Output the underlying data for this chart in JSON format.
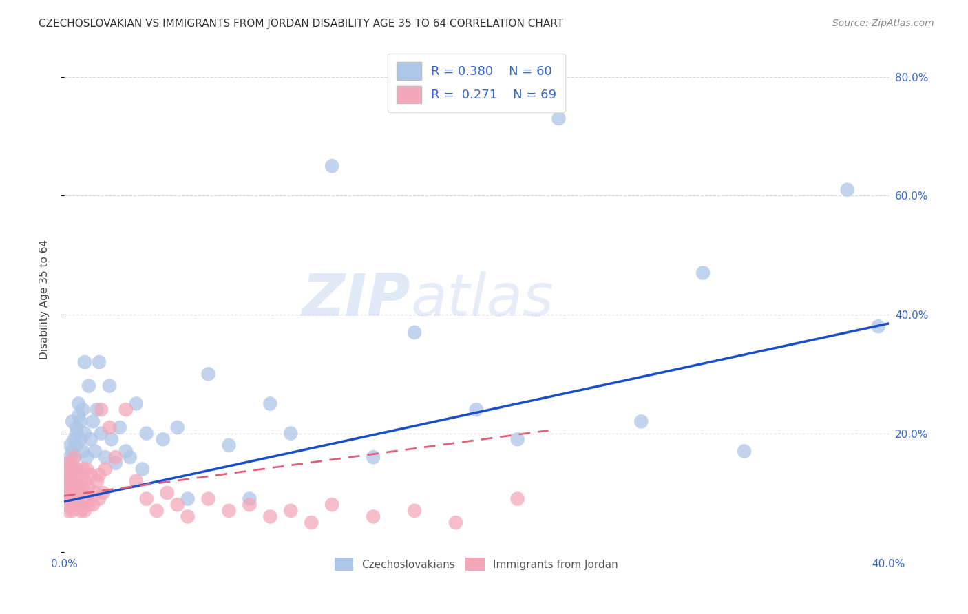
{
  "title": "CZECHOSLOVAKIAN VS IMMIGRANTS FROM JORDAN DISABILITY AGE 35 TO 64 CORRELATION CHART",
  "source": "Source: ZipAtlas.com",
  "ylabel": "Disability Age 35 to 64",
  "xlim": [
    0.0,
    0.4
  ],
  "ylim": [
    0.0,
    0.85
  ],
  "xticks": [
    0.0,
    0.1,
    0.2,
    0.3,
    0.4
  ],
  "xtick_labels": [
    "0.0%",
    "",
    "",
    "",
    "40.0%"
  ],
  "yticks": [
    0.0,
    0.2,
    0.4,
    0.6,
    0.8
  ],
  "ytick_labels_right": [
    "",
    "20.0%",
    "40.0%",
    "60.0%",
    "80.0%"
  ],
  "blue_R": 0.38,
  "blue_N": 60,
  "pink_R": 0.271,
  "pink_N": 69,
  "blue_color": "#aec6e8",
  "blue_line_color": "#1a4fcc",
  "pink_color": "#f4a7b9",
  "pink_line_color": "#e0607a",
  "watermark": "ZIPatlas",
  "blue_line_x": [
    0.0,
    0.4
  ],
  "blue_line_y": [
    0.085,
    0.385
  ],
  "pink_line_x": [
    0.0,
    0.235
  ],
  "pink_line_y": [
    0.095,
    0.205
  ],
  "blue_scatter_x": [
    0.001,
    0.001,
    0.002,
    0.002,
    0.003,
    0.003,
    0.003,
    0.004,
    0.004,
    0.004,
    0.005,
    0.005,
    0.006,
    0.006,
    0.006,
    0.007,
    0.007,
    0.008,
    0.008,
    0.009,
    0.009,
    0.01,
    0.01,
    0.011,
    0.012,
    0.013,
    0.014,
    0.015,
    0.016,
    0.017,
    0.018,
    0.02,
    0.022,
    0.023,
    0.025,
    0.027,
    0.03,
    0.032,
    0.035,
    0.038,
    0.04,
    0.048,
    0.055,
    0.06,
    0.07,
    0.08,
    0.09,
    0.1,
    0.11,
    0.13,
    0.15,
    0.17,
    0.2,
    0.22,
    0.24,
    0.28,
    0.31,
    0.33,
    0.38,
    0.395
  ],
  "blue_scatter_y": [
    0.12,
    0.14,
    0.1,
    0.15,
    0.18,
    0.13,
    0.16,
    0.14,
    0.17,
    0.22,
    0.19,
    0.16,
    0.2,
    0.18,
    0.21,
    0.25,
    0.23,
    0.19,
    0.22,
    0.17,
    0.24,
    0.32,
    0.2,
    0.16,
    0.28,
    0.19,
    0.22,
    0.17,
    0.24,
    0.32,
    0.2,
    0.16,
    0.28,
    0.19,
    0.15,
    0.21,
    0.17,
    0.16,
    0.25,
    0.14,
    0.2,
    0.19,
    0.21,
    0.09,
    0.3,
    0.18,
    0.09,
    0.25,
    0.2,
    0.65,
    0.16,
    0.37,
    0.24,
    0.19,
    0.73,
    0.22,
    0.47,
    0.17,
    0.61,
    0.38
  ],
  "pink_scatter_x": [
    0.001,
    0.001,
    0.001,
    0.001,
    0.002,
    0.002,
    0.002,
    0.002,
    0.002,
    0.003,
    0.003,
    0.003,
    0.003,
    0.004,
    0.004,
    0.004,
    0.004,
    0.005,
    0.005,
    0.005,
    0.005,
    0.006,
    0.006,
    0.006,
    0.007,
    0.007,
    0.007,
    0.008,
    0.008,
    0.008,
    0.009,
    0.009,
    0.009,
    0.01,
    0.01,
    0.011,
    0.011,
    0.012,
    0.012,
    0.013,
    0.013,
    0.014,
    0.015,
    0.016,
    0.017,
    0.017,
    0.018,
    0.019,
    0.02,
    0.022,
    0.025,
    0.03,
    0.035,
    0.04,
    0.045,
    0.05,
    0.055,
    0.06,
    0.07,
    0.08,
    0.09,
    0.1,
    0.11,
    0.12,
    0.13,
    0.15,
    0.17,
    0.19,
    0.22
  ],
  "pink_scatter_y": [
    0.08,
    0.1,
    0.12,
    0.14,
    0.07,
    0.09,
    0.11,
    0.13,
    0.15,
    0.08,
    0.1,
    0.12,
    0.15,
    0.07,
    0.09,
    0.11,
    0.14,
    0.08,
    0.1,
    0.13,
    0.16,
    0.09,
    0.11,
    0.14,
    0.08,
    0.11,
    0.13,
    0.07,
    0.1,
    0.13,
    0.08,
    0.11,
    0.14,
    0.07,
    0.12,
    0.09,
    0.14,
    0.08,
    0.11,
    0.09,
    0.13,
    0.08,
    0.1,
    0.12,
    0.09,
    0.13,
    0.24,
    0.1,
    0.14,
    0.21,
    0.16,
    0.24,
    0.12,
    0.09,
    0.07,
    0.1,
    0.08,
    0.06,
    0.09,
    0.07,
    0.08,
    0.06,
    0.07,
    0.05,
    0.08,
    0.06,
    0.07,
    0.05,
    0.09
  ]
}
